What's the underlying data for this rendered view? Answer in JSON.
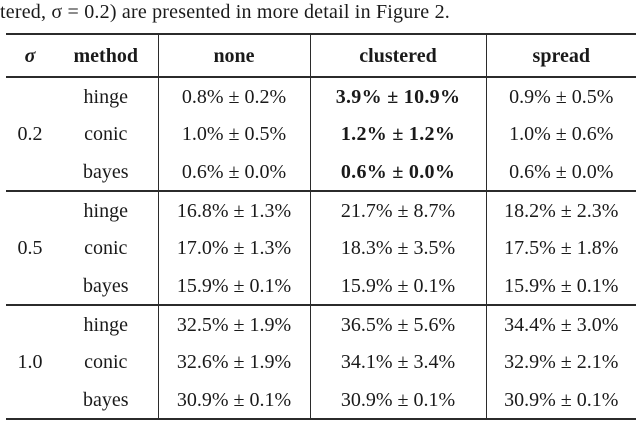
{
  "caption": "tered, σ = 0.2) are presented in more detail in Figure 2.",
  "colors": {
    "background": "#ffffff",
    "text": "#1a1a1a",
    "rule": "#2b2b2b"
  },
  "table": {
    "headers": {
      "sigma": "σ",
      "method": "method",
      "none": "none",
      "clustered": "clustered",
      "spread": "spread"
    },
    "emphasis_note": "clustered column values for sigma 0.2 are bold",
    "groups": [
      {
        "sigma": "0.2",
        "rows": [
          {
            "method": "hinge",
            "none": "0.8% ± 0.2%",
            "clustered": "3.9% ± 10.9%",
            "clustered_bold": true,
            "spread": "0.9% ± 0.5%"
          },
          {
            "method": "conic",
            "none": "1.0% ± 0.5%",
            "clustered": "1.2% ± 1.2%",
            "clustered_bold": true,
            "spread": "1.0% ± 0.6%"
          },
          {
            "method": "bayes",
            "none": "0.6% ± 0.0%",
            "clustered": "0.6% ± 0.0%",
            "clustered_bold": true,
            "spread": "0.6% ± 0.0%"
          }
        ]
      },
      {
        "sigma": "0.5",
        "rows": [
          {
            "method": "hinge",
            "none": "16.8% ± 1.3%",
            "clustered": "21.7% ± 8.7%",
            "clustered_bold": false,
            "spread": "18.2% ± 2.3%"
          },
          {
            "method": "conic",
            "none": "17.0% ± 1.3%",
            "clustered": "18.3% ± 3.5%",
            "clustered_bold": false,
            "spread": "17.5% ± 1.8%"
          },
          {
            "method": "bayes",
            "none": "15.9% ± 0.1%",
            "clustered": "15.9% ± 0.1%",
            "clustered_bold": false,
            "spread": "15.9% ± 0.1%"
          }
        ]
      },
      {
        "sigma": "1.0",
        "rows": [
          {
            "method": "hinge",
            "none": "32.5% ± 1.9%",
            "clustered": "36.5% ± 5.6%",
            "clustered_bold": false,
            "spread": "34.4% ± 3.0%"
          },
          {
            "method": "conic",
            "none": "32.6% ± 1.9%",
            "clustered": "34.1% ± 3.4%",
            "clustered_bold": false,
            "spread": "32.9% ± 2.1%"
          },
          {
            "method": "bayes",
            "none": "30.9% ± 0.1%",
            "clustered": "30.9% ± 0.1%",
            "clustered_bold": false,
            "spread": "30.9% ± 0.1%"
          }
        ]
      }
    ]
  }
}
